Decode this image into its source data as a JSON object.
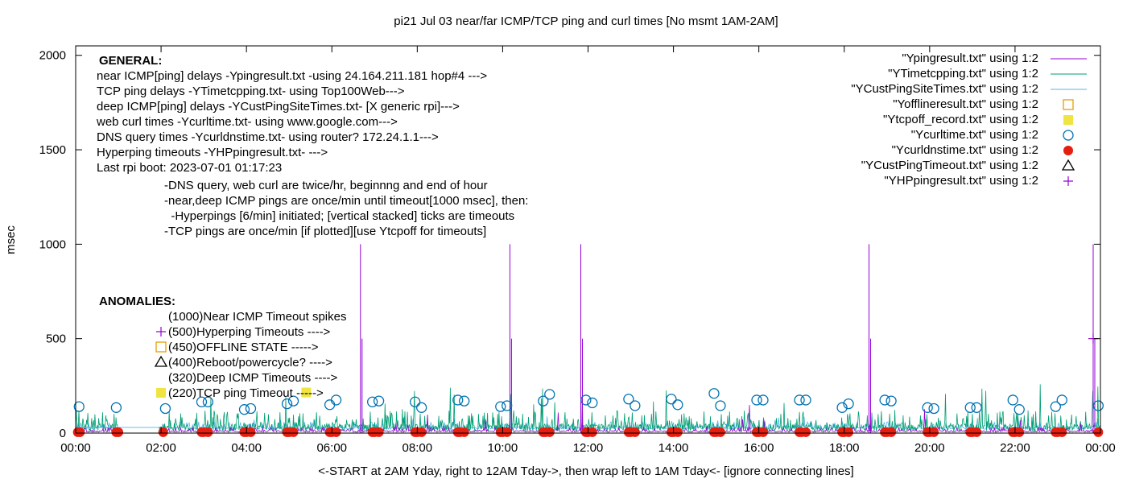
{
  "chart_data": {
    "type": "line",
    "title": "pi21 Jul 03  near/far ICMP/TCP ping and curl times [No msmt 1AM-2AM]",
    "xlabel": "<-START at 2AM Yday, right to 12AM Tday->, then wrap left to 1AM Tday<- [ignore connecting lines]",
    "ylabel": "msec",
    "xlim": [
      0,
      24
    ],
    "ylim": [
      0,
      2050
    ],
    "x_ticks": [
      "00:00",
      "02:00",
      "04:00",
      "06:00",
      "08:00",
      "10:00",
      "12:00",
      "14:00",
      "16:00",
      "18:00",
      "20:00",
      "22:00",
      "00:00"
    ],
    "y_ticks": [
      "0",
      "500",
      "1000",
      "1500",
      "2000"
    ],
    "y_tick_values": [
      0,
      500,
      1000,
      1500,
      2000
    ],
    "grid": false,
    "legend_position": "top-right",
    "legend": [
      {
        "label": "\"Ypingresult.txt\" using 1:2",
        "style": "line",
        "color": "#9400d3"
      },
      {
        "label": "\"YTimetcpping.txt\" using 1:2",
        "style": "line",
        "color": "#009e73"
      },
      {
        "label": "\"YCustPingSiteTimes.txt\" using 1:2",
        "style": "line",
        "color": "#56b4e9"
      },
      {
        "label": "\"Yofflineresult.txt\" using 1:2",
        "style": "open-square",
        "color": "#e69f00"
      },
      {
        "label": "\"Ytcpoff_record.txt\" using 1:2",
        "style": "filled-square",
        "color": "#f0e442"
      },
      {
        "label": "\"Ycurltime.txt\" using 1:2",
        "style": "open-circle",
        "color": "#0072b2"
      },
      {
        "label": "\"Ycurldnstime.txt\" using 1:2",
        "style": "filled-circle",
        "color": "#e51e10"
      },
      {
        "label": "\"YCustPingTimeout.txt\" using 1:2",
        "style": "open-triangle",
        "color": "#000000"
      },
      {
        "label": "\"YHPpingresult.txt\" using 1:2",
        "style": "plus",
        "color": "#9400d3"
      }
    ],
    "general_heading": "GENERAL:",
    "general_lines": [
      "near ICMP[ping] delays -Ypingresult.txt -using 24.164.211.181 hop#4 --->",
      "TCP ping delays -YTimetcpping.txt- using Top100Web--->",
      "deep ICMP[ping] delays -YCustPingSiteTimes.txt- [X generic rpi]--->",
      "web curl times -Ycurltime.txt- using www.google.com--->",
      "DNS query times -Ycurldnstime.txt- using router? 172.24.1.1--->",
      "Hyperping timeouts -YHPpingresult.txt- --->",
      "Last rpi boot: 2023-07-01 01:17:23"
    ],
    "notes": [
      "-DNS query, web curl are twice/hr, beginnng and end of hour",
      "-near,deep ICMP pings are once/min until timeout[1000 msec], then:",
      "  -Hyperpings [6/min] initiated; [vertical stacked] ticks are timeouts",
      "-TCP pings are once/min [if plotted][use Ytcpoff for timeouts]"
    ],
    "anomalies_heading": "ANOMALIES:",
    "anomalies": [
      {
        "text": "(1000)Near ICMP Timeout spikes",
        "marker": "none"
      },
      {
        "text": "(500)Hyperping Timeouts ---->",
        "marker": "plus"
      },
      {
        "text": "(450)OFFLINE STATE ----->",
        "marker": "open-square"
      },
      {
        "text": "(400)Reboot/powercycle? ---->",
        "marker": "open-triangle"
      },
      {
        "text": "(320)Deep ICMP Timeouts ---->",
        "marker": "none"
      },
      {
        "text": "(220)TCP ping Timeout ----->",
        "marker": "filled-square"
      }
    ],
    "icmp_timeout_spikes": [
      {
        "x": 6.67,
        "y": 1000
      },
      {
        "x": 10.17,
        "y": 1000
      },
      {
        "x": 11.83,
        "y": 1000
      },
      {
        "x": 18.58,
        "y": 1000
      },
      {
        "x": 23.83,
        "y": 1000
      }
    ],
    "hyperping_timeouts": [
      {
        "x": 23.83,
        "y": 500
      }
    ],
    "tcp_timeouts": [
      {
        "x": 5.4,
        "y": 215
      }
    ],
    "curl_times": [
      {
        "x": 0.08,
        "y": 140
      },
      {
        "x": 0.95,
        "y": 135
      },
      {
        "x": 2.1,
        "y": 130
      },
      {
        "x": 2.95,
        "y": 165
      },
      {
        "x": 3.1,
        "y": 165
      },
      {
        "x": 3.95,
        "y": 125
      },
      {
        "x": 4.1,
        "y": 130
      },
      {
        "x": 4.95,
        "y": 155
      },
      {
        "x": 5.1,
        "y": 170
      },
      {
        "x": 5.95,
        "y": 150
      },
      {
        "x": 6.1,
        "y": 175
      },
      {
        "x": 6.95,
        "y": 165
      },
      {
        "x": 7.1,
        "y": 170
      },
      {
        "x": 7.95,
        "y": 165
      },
      {
        "x": 8.1,
        "y": 135
      },
      {
        "x": 8.95,
        "y": 175
      },
      {
        "x": 9.1,
        "y": 170
      },
      {
        "x": 9.95,
        "y": 140
      },
      {
        "x": 10.1,
        "y": 145
      },
      {
        "x": 10.95,
        "y": 170
      },
      {
        "x": 11.1,
        "y": 205
      },
      {
        "x": 11.95,
        "y": 175
      },
      {
        "x": 12.1,
        "y": 160
      },
      {
        "x": 12.95,
        "y": 180
      },
      {
        "x": 13.1,
        "y": 145
      },
      {
        "x": 13.95,
        "y": 180
      },
      {
        "x": 14.1,
        "y": 150
      },
      {
        "x": 14.95,
        "y": 210
      },
      {
        "x": 15.1,
        "y": 145
      },
      {
        "x": 15.95,
        "y": 175
      },
      {
        "x": 16.1,
        "y": 175
      },
      {
        "x": 16.95,
        "y": 175
      },
      {
        "x": 17.1,
        "y": 175
      },
      {
        "x": 17.95,
        "y": 135
      },
      {
        "x": 18.1,
        "y": 155
      },
      {
        "x": 18.95,
        "y": 175
      },
      {
        "x": 19.1,
        "y": 170
      },
      {
        "x": 19.95,
        "y": 135
      },
      {
        "x": 20.1,
        "y": 130
      },
      {
        "x": 20.95,
        "y": 135
      },
      {
        "x": 21.1,
        "y": 135
      },
      {
        "x": 21.95,
        "y": 175
      },
      {
        "x": 22.1,
        "y": 125
      },
      {
        "x": 22.95,
        "y": 140
      },
      {
        "x": 23.1,
        "y": 175
      },
      {
        "x": 23.95,
        "y": 145
      }
    ],
    "dns_times": [
      0.05,
      0.1,
      0.95,
      1.0,
      2.05,
      2.95,
      3.0,
      3.1,
      3.95,
      4.0,
      4.1,
      4.95,
      5.0,
      5.1,
      5.95,
      6.0,
      6.1,
      6.95,
      7.0,
      7.1,
      7.95,
      8.0,
      8.1,
      8.95,
      9.0,
      9.1,
      9.95,
      10.0,
      10.1,
      10.95,
      11.0,
      11.1,
      11.95,
      12.0,
      12.1,
      12.95,
      13.0,
      13.1,
      13.95,
      14.0,
      14.1,
      14.95,
      15.0,
      15.1,
      15.95,
      16.0,
      16.1,
      16.95,
      17.0,
      17.1,
      17.95,
      18.0,
      18.1,
      18.95,
      19.0,
      19.1,
      19.95,
      20.0,
      20.1,
      20.95,
      21.0,
      21.1,
      21.95,
      22.0,
      22.1,
      22.95,
      23.0,
      23.1,
      23.95
    ],
    "dns_value_msec": 5,
    "near_icmp_baseline_msec": [
      5,
      30
    ],
    "tcp_ping_baseline_msec": [
      10,
      120
    ],
    "deep_icmp_baseline_msec": [
      20,
      60
    ]
  }
}
